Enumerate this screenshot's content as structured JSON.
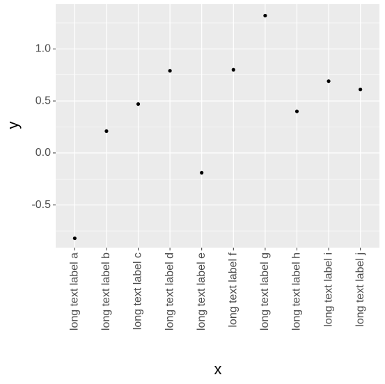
{
  "chart_data": {
    "type": "scatter",
    "x_label": "x",
    "y_label": "y",
    "categories": [
      "long text label a",
      "long text label b",
      "long text label c",
      "long text label d",
      "long text label e",
      "long text label f",
      "long text label g",
      "long text label h",
      "long text label i",
      "long text label j"
    ],
    "values": [
      -0.82,
      0.21,
      0.47,
      0.79,
      -0.19,
      0.8,
      1.32,
      0.4,
      0.69,
      0.61
    ],
    "color": "#000000",
    "ylim": [
      -0.91,
      1.43
    ],
    "yticks": [
      -0.5,
      {
        "value": 0,
        "label": "0.0"
      },
      0.5,
      {
        "value": 1,
        "label": "1.0"
      }
    ],
    "grid": true
  }
}
